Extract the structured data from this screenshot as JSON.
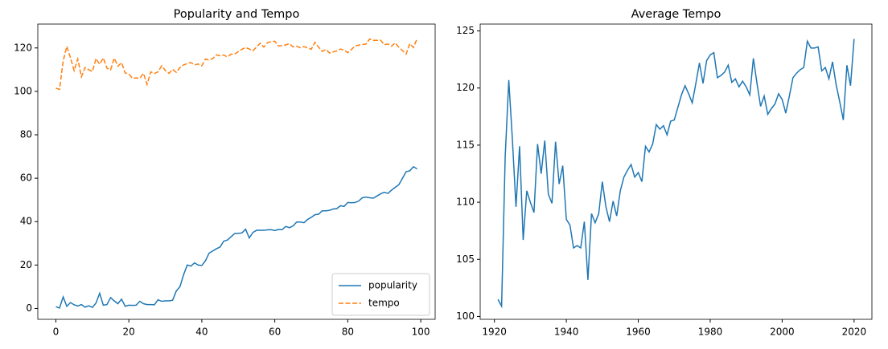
{
  "chart_data": [
    {
      "type": "line",
      "title": "Popularity and Tempo",
      "x": [
        0,
        1,
        2,
        3,
        4,
        5,
        6,
        7,
        8,
        9,
        10,
        11,
        12,
        13,
        14,
        15,
        16,
        17,
        18,
        19,
        20,
        21,
        22,
        23,
        24,
        25,
        26,
        27,
        28,
        29,
        30,
        31,
        32,
        33,
        34,
        35,
        36,
        37,
        38,
        39,
        40,
        41,
        42,
        43,
        44,
        45,
        46,
        47,
        48,
        49,
        50,
        51,
        52,
        53,
        54,
        55,
        56,
        57,
        58,
        59,
        60,
        61,
        62,
        63,
        64,
        65,
        66,
        67,
        68,
        69,
        70,
        71,
        72,
        73,
        74,
        75,
        76,
        77,
        78,
        79,
        80,
        81,
        82,
        83,
        84,
        85,
        86,
        87,
        88,
        89,
        90,
        91,
        92,
        93,
        94,
        95,
        96,
        97,
        98,
        99
      ],
      "series": [
        {
          "name": "popularity",
          "color": "#1f77b4",
          "linestyle": "solid",
          "values": [
            0.8,
            0.2,
            5.3,
            1,
            2.7,
            1.7,
            1.1,
            1.8,
            0.6,
            1.2,
            0.5,
            2.5,
            7,
            1.5,
            1.8,
            5,
            3.5,
            2.2,
            4.3,
            1,
            1.5,
            1.4,
            1.5,
            3.3,
            2.2,
            1.8,
            1.8,
            1.7,
            4,
            3.3,
            3.5,
            3.5,
            3.8,
            8,
            10,
            15.5,
            20,
            19.5,
            21,
            20,
            19.8,
            22,
            25.5,
            26.5,
            27.5,
            28.3,
            31,
            31.5,
            33,
            34.5,
            34.6,
            34.8,
            36.5,
            32.5,
            35,
            36,
            36,
            36,
            36.2,
            36.3,
            35.9,
            36.4,
            36.3,
            37.8,
            37.2,
            38,
            39.8,
            39.8,
            39.5,
            41,
            42,
            43.2,
            43.4,
            45,
            45,
            45.2,
            45.8,
            46,
            47.3,
            47,
            48.8,
            48.7,
            48.8,
            49.5,
            51,
            51.3,
            51,
            50.8,
            51.8,
            52.8,
            53.5,
            53,
            54.5,
            55.8,
            57,
            60,
            63,
            63.4,
            65.3,
            64.3
          ]
        },
        {
          "name": "tempo",
          "color": "#ff7f0e",
          "linestyle": "dashed",
          "values": [
            101.5,
            100.9,
            114,
            120.7,
            115.5,
            109.6,
            114.9,
            106.7,
            111,
            110,
            109.1,
            115.1,
            112.5,
            115.4,
            110.7,
            109.9,
            115.3,
            111.6,
            113.2,
            108.5,
            108,
            106,
            106.2,
            106,
            108.3,
            103.2,
            109,
            108.2,
            109,
            111.8,
            109.6,
            108.3,
            110.1,
            108.8,
            111,
            112.2,
            112.8,
            113.3,
            112.2,
            112.6,
            111.8,
            114.9,
            114.4,
            115.1,
            116.8,
            116.4,
            116.7,
            115.9,
            117.1,
            117.2,
            118.3,
            119.4,
            120.2,
            119.5,
            118.7,
            120.4,
            122.2,
            120.4,
            122.4,
            122.9,
            123.1,
            120.9,
            121.1,
            121.4,
            122,
            120.5,
            120.8,
            120.1,
            120.6,
            120.1,
            119.4,
            122.6,
            120.4,
            118.4,
            119.3,
            117.7,
            118.2,
            118.6,
            119.5,
            119,
            117.8,
            119.3,
            120.9,
            121.3,
            121.6,
            121.8,
            124.1,
            123.5,
            123.5,
            123.6,
            121.5,
            121.8,
            120.8,
            122.3,
            120.3,
            118.8,
            117.2,
            122,
            120.2,
            124.3
          ]
        }
      ],
      "xlim": [
        -4.95,
        103.95
      ],
      "xticks": [
        0,
        20,
        40,
        60,
        80,
        100
      ],
      "ylim": [
        -5,
        131
      ],
      "yticks": [
        0,
        20,
        40,
        60,
        80,
        100,
        120
      ],
      "legend": "lower right"
    },
    {
      "type": "line",
      "title": "Average Tempo",
      "x": [
        1921,
        1922,
        1923,
        1924,
        1925,
        1926,
        1927,
        1928,
        1929,
        1930,
        1931,
        1932,
        1933,
        1934,
        1935,
        1936,
        1937,
        1938,
        1939,
        1940,
        1941,
        1942,
        1943,
        1944,
        1945,
        1946,
        1947,
        1948,
        1949,
        1950,
        1951,
        1952,
        1953,
        1954,
        1955,
        1956,
        1957,
        1958,
        1959,
        1960,
        1961,
        1962,
        1963,
        1964,
        1965,
        1966,
        1967,
        1968,
        1969,
        1970,
        1971,
        1972,
        1973,
        1974,
        1975,
        1976,
        1977,
        1978,
        1979,
        1980,
        1981,
        1982,
        1983,
        1984,
        1985,
        1986,
        1987,
        1988,
        1989,
        1990,
        1991,
        1992,
        1993,
        1994,
        1995,
        1996,
        1997,
        1998,
        1999,
        2000,
        2001,
        2002,
        2003,
        2004,
        2005,
        2006,
        2007,
        2008,
        2009,
        2010,
        2011,
        2012,
        2013,
        2014,
        2015,
        2016,
        2017,
        2018,
        2019,
        2020
      ],
      "values": [
        101.5,
        100.9,
        114,
        120.7,
        115.5,
        109.6,
        114.9,
        106.7,
        111,
        110,
        109.1,
        115.1,
        112.5,
        115.4,
        110.7,
        109.9,
        115.3,
        111.6,
        113.2,
        108.5,
        108,
        106,
        106.2,
        106,
        108.3,
        103.2,
        109,
        108.2,
        109,
        111.8,
        109.6,
        108.3,
        110.1,
        108.8,
        111,
        112.2,
        112.8,
        113.3,
        112.2,
        112.6,
        111.8,
        114.9,
        114.4,
        115.1,
        116.8,
        116.4,
        116.7,
        115.9,
        117.1,
        117.2,
        118.3,
        119.4,
        120.2,
        119.5,
        118.7,
        120.4,
        122.2,
        120.4,
        122.4,
        122.9,
        123.1,
        120.9,
        121.1,
        121.4,
        122,
        120.5,
        120.8,
        120.1,
        120.6,
        120.1,
        119.4,
        122.6,
        120.4,
        118.4,
        119.3,
        117.7,
        118.2,
        118.6,
        119.5,
        119,
        117.8,
        119.3,
        120.9,
        121.3,
        121.6,
        121.8,
        124.1,
        123.5,
        123.5,
        123.6,
        121.5,
        121.8,
        120.8,
        122.3,
        120.3,
        118.8,
        117.2,
        122,
        120.2,
        124.3
      ],
      "color": "#1f77b4",
      "xlim": [
        1916.05,
        2024.95
      ],
      "xticks": [
        1920,
        1940,
        1960,
        1980,
        2000,
        2020
      ],
      "ylim": [
        99.75,
        125.6
      ],
      "yticks": [
        100,
        105,
        110,
        115,
        120,
        125
      ]
    }
  ]
}
